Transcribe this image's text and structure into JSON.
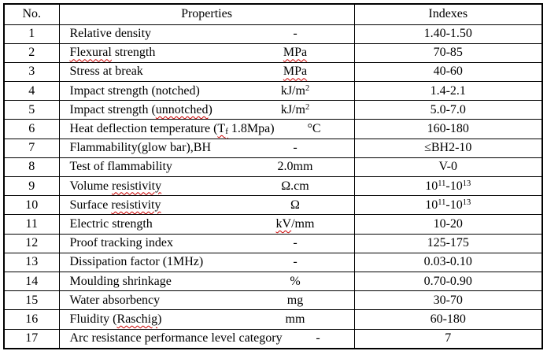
{
  "table": {
    "squiggle_color": "#cc0000",
    "headers": {
      "no": "No.",
      "properties": "Properties",
      "indexes": "Indexes"
    },
    "rows": [
      {
        "no": "1",
        "property": [
          {
            "t": "Relative density"
          }
        ],
        "unit": [
          {
            "t": "-"
          }
        ],
        "index": [
          {
            "t": "1.40-1.50"
          }
        ]
      },
      {
        "no": "2",
        "property": [
          {
            "t": "Flexural",
            "sq": true
          },
          {
            "t": " strength"
          }
        ],
        "unit": [
          {
            "t": "MPa",
            "sq": true
          }
        ],
        "index": [
          {
            "t": "70-85"
          }
        ]
      },
      {
        "no": "3",
        "property": [
          {
            "t": "Stress at break"
          }
        ],
        "unit": [
          {
            "t": "MPa",
            "sq": true
          }
        ],
        "index": [
          {
            "t": "40-60"
          }
        ]
      },
      {
        "no": "4",
        "property": [
          {
            "t": "Impact strength (notched)"
          }
        ],
        "unit": [
          {
            "t": "kJ/m"
          },
          {
            "t": "2",
            "sup": true
          }
        ],
        "index": [
          {
            "t": "1.4-2.1"
          }
        ]
      },
      {
        "no": "5",
        "property": [
          {
            "t": "Impact strength ("
          },
          {
            "t": "unnotched",
            "sq": true
          },
          {
            "t": ")"
          }
        ],
        "unit": [
          {
            "t": "kJ/m"
          },
          {
            "t": "2",
            "sup": true
          }
        ],
        "index": [
          {
            "t": "5.0-7.0"
          }
        ]
      },
      {
        "no": "6",
        "property": [
          {
            "t": "Heat deflection temperature ("
          },
          {
            "t": "T",
            "sq": true
          },
          {
            "t": "f",
            "sub": true,
            "sq": true
          },
          {
            "t": " 1.8Mpa)"
          }
        ],
        "unit": [
          {
            "t": "°C"
          }
        ],
        "index": [
          {
            "t": "160-180"
          }
        ]
      },
      {
        "no": "7",
        "property": [
          {
            "t": "Flammability(glow bar),BH"
          }
        ],
        "unit": [
          {
            "t": "-"
          }
        ],
        "index": [
          {
            "t": "≤BH2-10"
          }
        ]
      },
      {
        "no": "8",
        "property": [
          {
            "t": "Test of flammability"
          }
        ],
        "unit": [
          {
            "t": "2.0mm"
          }
        ],
        "index": [
          {
            "t": "V-0"
          }
        ]
      },
      {
        "no": "9",
        "property": [
          {
            "t": "Volume "
          },
          {
            "t": "resistivity",
            "sq": true
          }
        ],
        "unit": [
          {
            "t": "Ω.cm"
          }
        ],
        "index": [
          {
            "t": "10"
          },
          {
            "t": "11",
            "sup": true
          },
          {
            "t": "-10"
          },
          {
            "t": "13",
            "sup": true
          }
        ]
      },
      {
        "no": "10",
        "property": [
          {
            "t": "Surface "
          },
          {
            "t": "resistivity",
            "sq": true
          }
        ],
        "unit": [
          {
            "t": "Ω"
          }
        ],
        "index": [
          {
            "t": "10"
          },
          {
            "t": "11",
            "sup": true
          },
          {
            "t": "-10"
          },
          {
            "t": "13",
            "sup": true
          }
        ]
      },
      {
        "no": "11",
        "property": [
          {
            "t": "Electric strength"
          }
        ],
        "unit": [
          {
            "t": "kV",
            "sq": true
          },
          {
            "t": "/mm"
          }
        ],
        "index": [
          {
            "t": "10-20"
          }
        ]
      },
      {
        "no": "12",
        "property": [
          {
            "t": "Proof tracking index"
          }
        ],
        "unit": [
          {
            "t": "-"
          }
        ],
        "index": [
          {
            "t": "125-175"
          }
        ]
      },
      {
        "no": "13",
        "property": [
          {
            "t": "Dissipation factor (1MHz)"
          }
        ],
        "unit": [
          {
            "t": "-"
          }
        ],
        "index": [
          {
            "t": "0.03-0.10"
          }
        ]
      },
      {
        "no": "14",
        "property": [
          {
            "t": "Moulding shrinkage"
          }
        ],
        "unit": [
          {
            "t": "%"
          }
        ],
        "index": [
          {
            "t": "0.70-0.90"
          }
        ]
      },
      {
        "no": "15",
        "property": [
          {
            "t": "Water absorbency"
          }
        ],
        "unit": [
          {
            "t": "mg"
          }
        ],
        "index": [
          {
            "t": "30-70"
          }
        ]
      },
      {
        "no": "16",
        "property": [
          {
            "t": "Fluidity ("
          },
          {
            "t": "Raschig",
            "sq": true
          },
          {
            "t": ")"
          }
        ],
        "unit": [
          {
            "t": "mm"
          }
        ],
        "index": [
          {
            "t": "60-180"
          }
        ]
      },
      {
        "no": "17",
        "property": [
          {
            "t": "Arc resistance performance level category"
          }
        ],
        "unit": [
          {
            "t": "-"
          }
        ],
        "index": [
          {
            "t": "7"
          }
        ]
      }
    ]
  }
}
